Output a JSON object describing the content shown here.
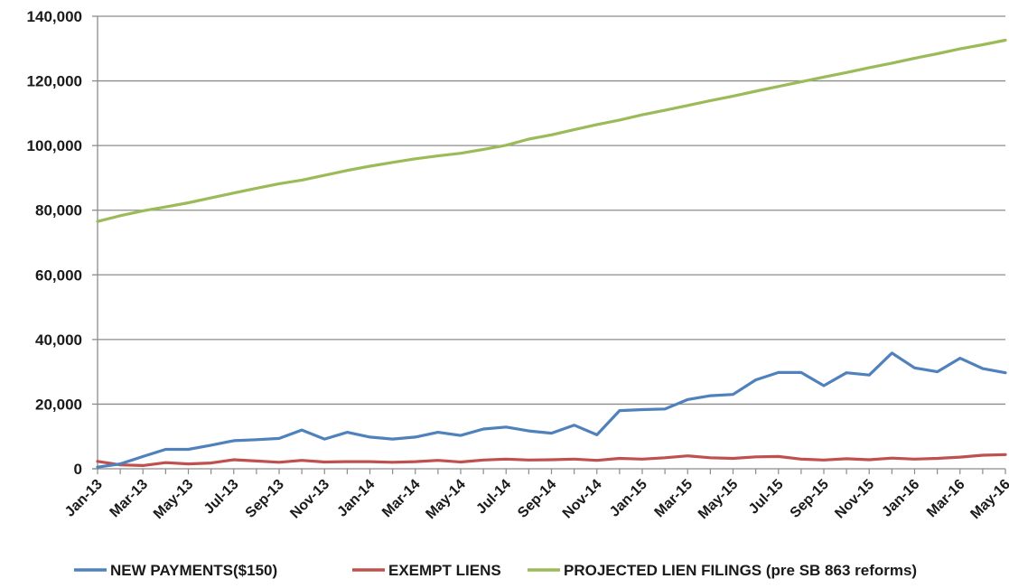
{
  "chart_data": {
    "type": "line",
    "ylim": [
      0,
      140000
    ],
    "yticks": [
      0,
      20000,
      40000,
      60000,
      80000,
      100000,
      120000,
      140000
    ],
    "ytick_labels": [
      "0",
      "20,000",
      "40,000",
      "60,000",
      "80,000",
      "100,000",
      "120,000",
      "140,000"
    ],
    "grid": true,
    "legend_position": "bottom",
    "x": [
      "Jan-13",
      "Feb-13",
      "Mar-13",
      "Apr-13",
      "May-13",
      "Jun-13",
      "Jul-13",
      "Aug-13",
      "Sep-13",
      "Oct-13",
      "Nov-13",
      "Dec-13",
      "Jan-14",
      "Feb-14",
      "Mar-14",
      "Apr-14",
      "May-14",
      "Jun-14",
      "Jul-14",
      "Aug-14",
      "Sep-14",
      "Oct-14",
      "Nov-14",
      "Dec-14",
      "Jan-15",
      "Feb-15",
      "Mar-15",
      "Apr-15",
      "May-15",
      "Jun-15",
      "Jul-15",
      "Aug-15",
      "Sep-15",
      "Oct-15",
      "Nov-15",
      "Dec-15",
      "Jan-16",
      "Feb-16",
      "Mar-16",
      "Apr-16",
      "May-16"
    ],
    "xtick_labels": [
      "Jan-13",
      "Mar-13",
      "May-13",
      "Jul-13",
      "Sep-13",
      "Nov-13",
      "Jan-14",
      "Mar-14",
      "May-14",
      "Jul-14",
      "Sep-14",
      "Nov-14",
      "Jan-15",
      "Mar-15",
      "May-15",
      "Jul-15",
      "Sep-15",
      "Nov-15",
      "Jan-16",
      "Mar-16",
      "May-16"
    ],
    "series": [
      {
        "name": "NEW PAYMENTS($150)",
        "color": "#4f81bd",
        "values": [
          500,
          1500,
          3800,
          6000,
          6000,
          7300,
          8700,
          9000,
          9400,
          12000,
          9200,
          11300,
          9800,
          9200,
          9800,
          11300,
          10300,
          12300,
          12900,
          11700,
          11000,
          13500,
          10500,
          18000,
          18300,
          18500,
          21400,
          22600,
          23000,
          27500,
          29800,
          29800,
          25700,
          29700,
          29000,
          35800,
          31200,
          30000,
          34200,
          31000,
          29700
        ]
      },
      {
        "name": "EXEMPT LIENS",
        "color": "#c0504d",
        "values": [
          2300,
          1200,
          1000,
          1900,
          1500,
          1800,
          2800,
          2400,
          2000,
          2600,
          2100,
          2200,
          2200,
          2000,
          2200,
          2600,
          2100,
          2700,
          3000,
          2700,
          2800,
          3000,
          2600,
          3200,
          3000,
          3400,
          4000,
          3400,
          3200,
          3700,
          3800,
          3000,
          2700,
          3100,
          2800,
          3300,
          3000,
          3200,
          3600,
          4200,
          4400
        ]
      },
      {
        "name": "PROJECTED LIEN FILINGS (pre SB 863 reforms)",
        "color": "#9bbb59",
        "values": [
          76500,
          78300,
          79800,
          81000,
          82300,
          83800,
          85300,
          86800,
          88200,
          89300,
          90800,
          92300,
          93600,
          94800,
          95900,
          96800,
          97600,
          98800,
          100100,
          102000,
          103300,
          104900,
          106500,
          107900,
          109500,
          110900,
          112400,
          113900,
          115300,
          116800,
          118300,
          119700,
          121200,
          122600,
          124100,
          125500,
          127000,
          128400,
          129900,
          131200,
          132600
        ]
      }
    ]
  }
}
